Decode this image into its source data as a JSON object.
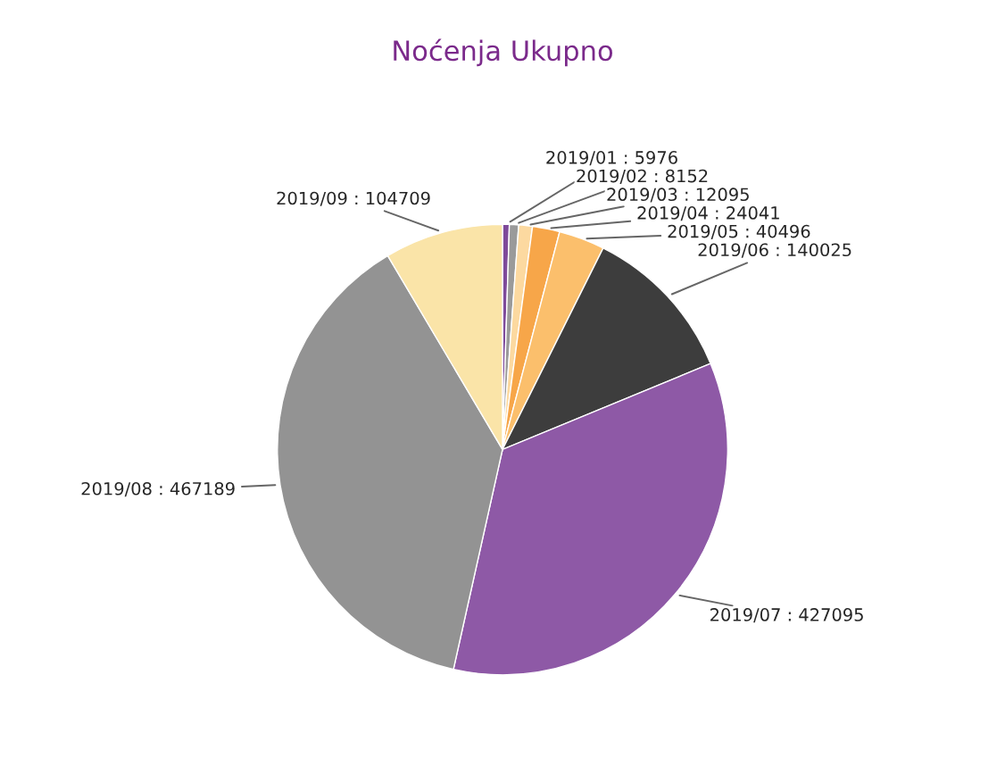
{
  "chart_data": {
    "type": "pie",
    "title": "Noćenja Ukupno",
    "categories": [
      null,
      null,
      null,
      null,
      null,
      null,
      null,
      null,
      null
    ],
    "values": [
      5976,
      8152,
      12095,
      24041,
      40496,
      140025,
      427095,
      467189,
      104709
    ],
    "value_labels": [
      "2019/01 : 5976",
      "2019/02 : 8152",
      "2019/03 : 12095",
      "2019/04 : 24041",
      "2019/05 : 40496",
      "2019/06 : 140025",
      "2019/07 : 427095",
      "2019/08 : 467189",
      "2019/09 : 104709"
    ],
    "colors": [
      "#7e4a9a",
      "#9a9a9a",
      "#fcd9a0",
      "#f7a649",
      "#fbbf6c",
      "#3d3d3d",
      "#8e59a6",
      "#939393",
      "#fae4a8"
    ],
    "legend": false
  }
}
